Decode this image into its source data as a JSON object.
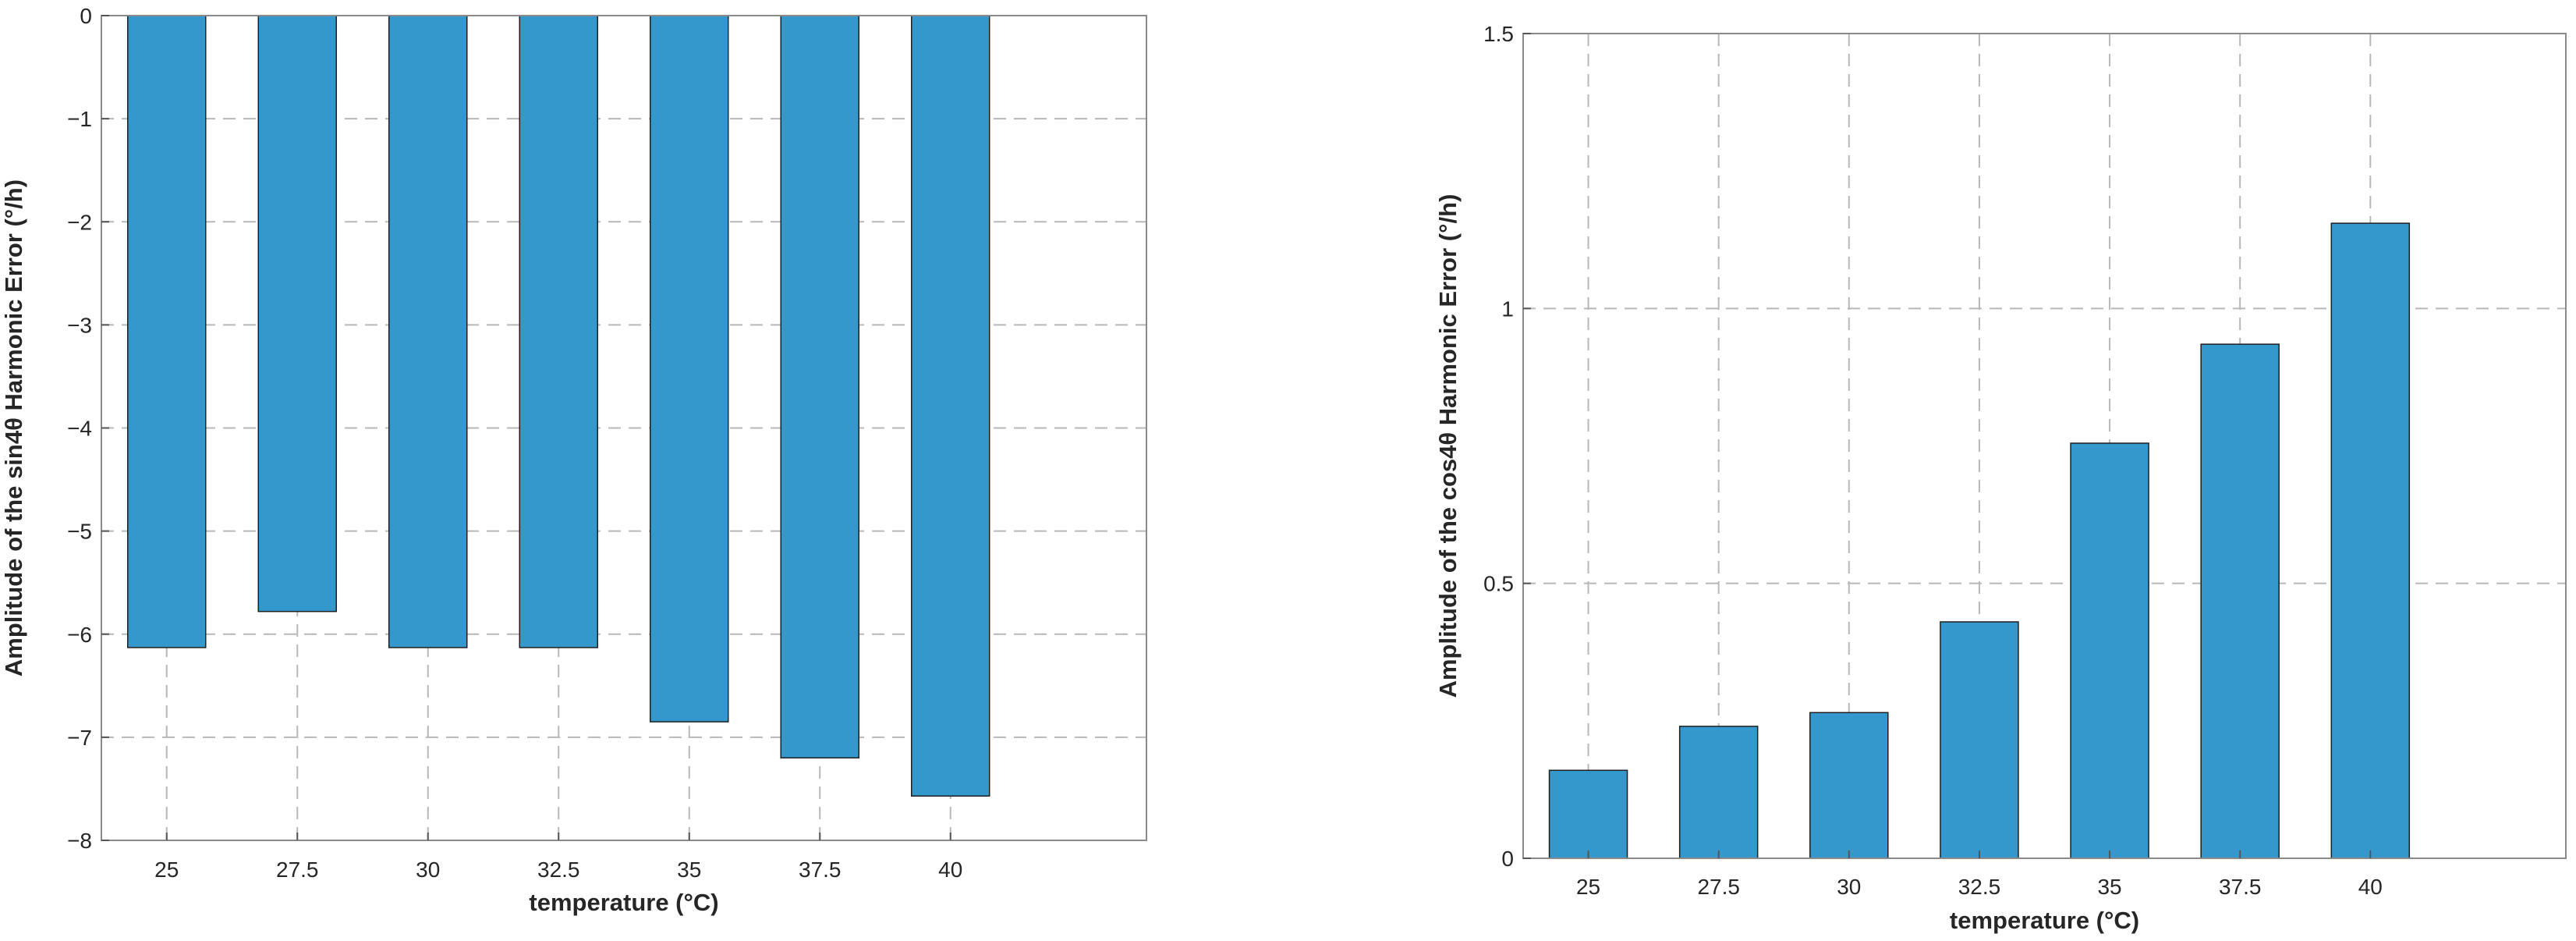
{
  "chart_data": [
    {
      "type": "bar",
      "categories": [
        "25",
        "27.5",
        "30",
        "32.5",
        "35",
        "37.5",
        "40"
      ],
      "values": [
        -6.13,
        -5.78,
        -6.13,
        -6.13,
        -6.85,
        -7.2,
        -7.57
      ],
      "xlabel": "temperature (°C)",
      "ylabel": "Amplitude of the sin4θ Harmonic Error (°/h)",
      "ylim": [
        -8,
        0
      ],
      "yticks": [
        "0",
        "−1",
        "−2",
        "−3",
        "−4",
        "−5",
        "−6",
        "−7",
        "−8"
      ],
      "grid": true,
      "bar_color": "#3498cd"
    },
    {
      "type": "bar",
      "categories": [
        "25",
        "27.5",
        "30",
        "32.5",
        "35",
        "37.5",
        "40"
      ],
      "values": [
        0.16,
        0.24,
        0.265,
        0.43,
        0.755,
        0.935,
        1.155
      ],
      "xlabel": "temperature (°C)",
      "ylabel": "Amplitude of the cos4θ Harmonic Error (°/h)",
      "ylim": [
        0,
        1.5
      ],
      "yticks": [
        "0",
        "0.5",
        "1",
        "1.5"
      ],
      "grid": true,
      "bar_color": "#3498cd"
    }
  ]
}
